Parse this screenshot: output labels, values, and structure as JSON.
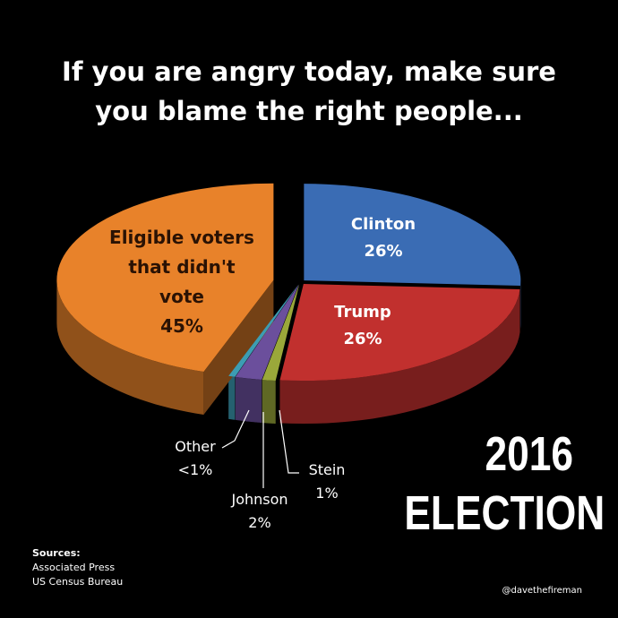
{
  "chart_data": {
    "type": "pie",
    "title": "If you are angry today, make sure you blame the right people...",
    "categories": [
      "Clinton",
      "Trump",
      "Stein",
      "Johnson",
      "Other",
      "Eligible voters that didn't vote"
    ],
    "values": [
      26,
      26,
      1,
      2,
      0.5,
      45
    ],
    "value_labels": [
      "26%",
      "26%",
      "1%",
      "2%",
      "<1%",
      "45%"
    ],
    "colors": [
      "#3a6cb4",
      "#c1302e",
      "#9aa83a",
      "#6b4f9c",
      "#3c9db3",
      "#e8822a"
    ],
    "annotation": "2016 ELECTION",
    "sources": {
      "heading": "Sources:",
      "lines": [
        "Associated Press",
        "US Census Bureau"
      ]
    },
    "credit": "@davethefireman"
  }
}
